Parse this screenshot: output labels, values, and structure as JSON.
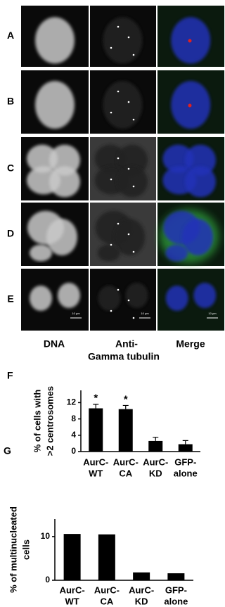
{
  "figure": {
    "panels": [
      "A",
      "B",
      "C",
      "D",
      "E"
    ],
    "columns": [
      "DNA",
      "Anti-",
      "Merge"
    ],
    "column_subtitle": "Gamma tubulin",
    "scale_bar": "10 μm"
  },
  "chart_data": [
    {
      "type": "bar",
      "label": "F",
      "y_label": [
        "% of cells with",
        ">2 centrosomes"
      ],
      "categories": [
        [
          "AurC-",
          "WT"
        ],
        [
          "AurC-",
          "CA"
        ],
        [
          "AurC-",
          "KD"
        ],
        [
          "GFP-",
          "alone"
        ]
      ],
      "values": [
        10.6,
        10.4,
        2.6,
        1.8
      ],
      "errors": [
        1.0,
        0.9,
        0.9,
        0.9
      ],
      "value_annotations": [
        "*",
        "*",
        null,
        null
      ],
      "color": "#000000",
      "ylim": [
        0,
        15
      ],
      "yticks": [
        0,
        4,
        8,
        12
      ]
    },
    {
      "type": "bar",
      "label": "G",
      "y_label": [
        "% of multinucleated",
        "cells"
      ],
      "categories": [
        [
          "AurC-",
          "WT"
        ],
        [
          "AurC-",
          "CA"
        ],
        [
          "AurC-",
          "KD"
        ],
        [
          "GFP-",
          "alone"
        ]
      ],
      "values": [
        10.6,
        10.5,
        1.8,
        1.6
      ],
      "color": "#000000",
      "ylim": [
        0,
        14
      ],
      "yticks": [
        0,
        10
      ]
    }
  ]
}
